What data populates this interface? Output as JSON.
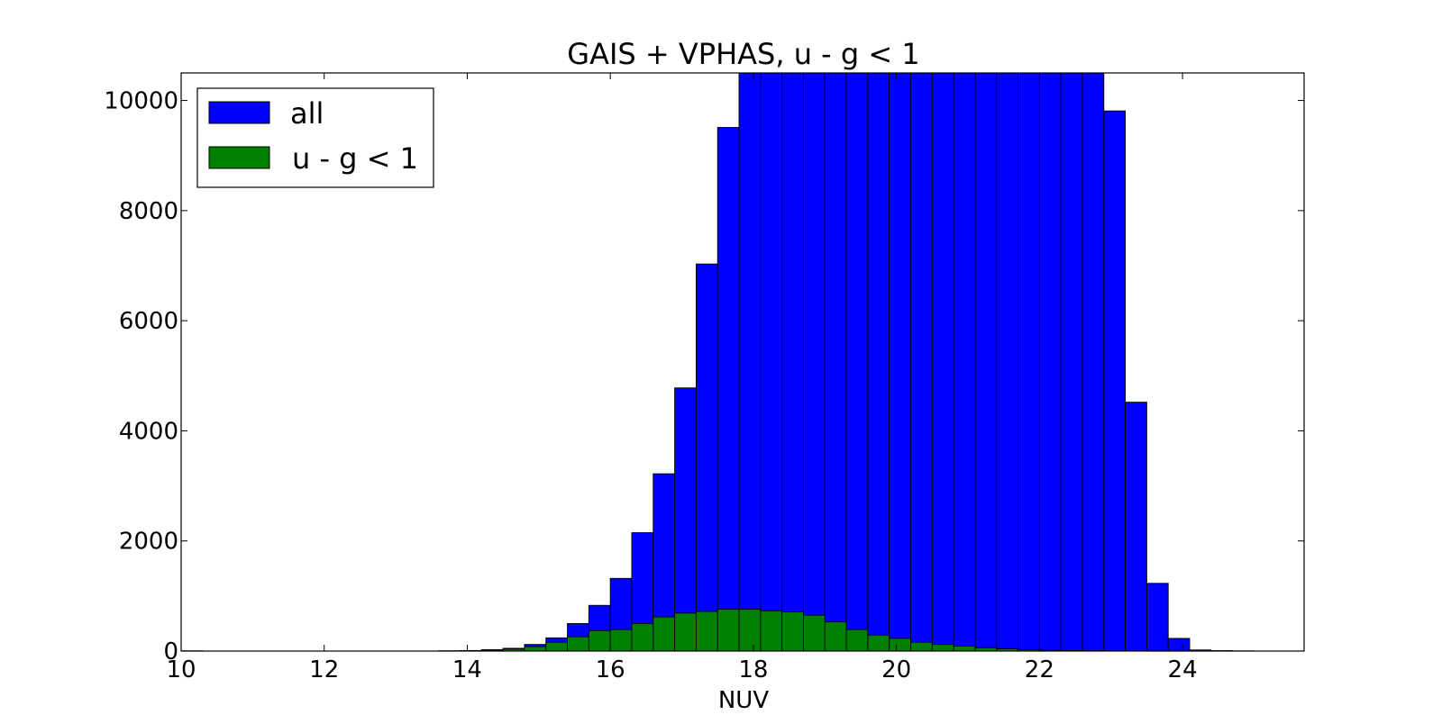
{
  "chart_data": {
    "type": "bar",
    "title": "GAIS + VPHAS, u - g < 1",
    "xlabel": "NUV",
    "ylabel": "",
    "xlim": [
      10,
      25.7
    ],
    "ylim": [
      0,
      10500
    ],
    "grid": false,
    "legend_position": "top-left",
    "bin_width": 0.3,
    "x_ticks": [
      10,
      12,
      14,
      16,
      18,
      20,
      22,
      24
    ],
    "y_ticks": [
      0,
      2000,
      4000,
      6000,
      8000,
      10000
    ],
    "x_tick_labels": [
      "10",
      "12",
      "14",
      "16",
      "18",
      "20",
      "22",
      "24"
    ],
    "y_tick_labels": [
      "0",
      "2000",
      "4000",
      "6000",
      "8000",
      "10000"
    ],
    "bin_starts": [
      10.0,
      13.6,
      13.9,
      14.2,
      14.5,
      14.8,
      15.1,
      15.4,
      15.7,
      16.0,
      16.3,
      16.6,
      16.9,
      17.2,
      17.5,
      17.8,
      18.1,
      18.4,
      18.7,
      19.0,
      19.3,
      19.6,
      19.9,
      20.2,
      20.5,
      20.8,
      21.1,
      21.4,
      21.7,
      22.0,
      22.3,
      22.6,
      22.9,
      23.2,
      23.5,
      23.8,
      24.1,
      24.4,
      24.7
    ],
    "series": [
      {
        "name": "all",
        "color": "#0000ff",
        "values": [
          5,
          5,
          10,
          25,
          50,
          120,
          240,
          500,
          830,
          1320,
          2150,
          3220,
          4780,
          7030,
          9510,
          10500,
          10500,
          10500,
          10500,
          10500,
          10500,
          10500,
          10500,
          10500,
          10500,
          10500,
          10500,
          10500,
          10500,
          10500,
          10500,
          10500,
          9810,
          4520,
          1230,
          230,
          20,
          8,
          3
        ]
      },
      {
        "name": "u - g < 1",
        "color": "#008000",
        "values": [
          0,
          2,
          5,
          15,
          35,
          80,
          160,
          260,
          370,
          390,
          500,
          620,
          690,
          720,
          760,
          760,
          730,
          710,
          650,
          530,
          390,
          290,
          230,
          160,
          120,
          90,
          60,
          40,
          25,
          15,
          10,
          5,
          3,
          2,
          1,
          0,
          0,
          0,
          0
        ]
      }
    ]
  }
}
